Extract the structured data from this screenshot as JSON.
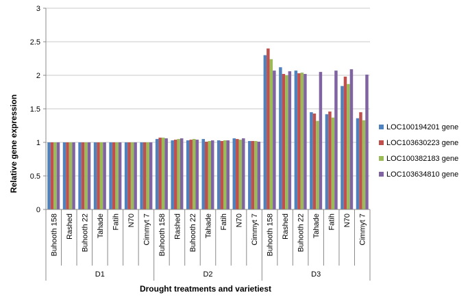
{
  "chart_data": {
    "type": "bar",
    "title": "",
    "xlabel": "Drought treatments and varietiest",
    "ylabel": "Relative gene expression",
    "ylim": [
      0,
      3
    ],
    "yticks": [
      0,
      0.5,
      1,
      1.5,
      2,
      2.5,
      3
    ],
    "ytick_labels": [
      "0",
      "0.5",
      "1",
      "1.5",
      "2",
      "2.5",
      "3"
    ],
    "grid": true,
    "legend_position": "right",
    "groups": [
      "D1",
      "D2",
      "D3"
    ],
    "varieties": [
      "Buhooth 158",
      "Rashed",
      "Buhooth 22",
      "Tahade",
      "Fatih",
      "N70",
      "Cimmyt 7"
    ],
    "categories": [
      "Buhooth 158",
      "Rashed",
      "Buhooth 22",
      "Tahade",
      "Fatih",
      "N70",
      "Cimmyt 7",
      "Buhooth 158",
      "Rashed",
      "Buhooth 22",
      "Tahade",
      "Fatih",
      "N70",
      "Cimmyt 7",
      "Buhooth 158",
      "Rashed",
      "Buhooth 22",
      "Tahade",
      "Fatih",
      "N70",
      "Cimmyt 7"
    ],
    "series": [
      {
        "name": "LOC100194201 gene",
        "color": "#4F81BD",
        "values": [
          1,
          1,
          1,
          1,
          1,
          1,
          1,
          1.05,
          1.03,
          1.03,
          1.05,
          1.03,
          1.06,
          1.02,
          2.3,
          2.12,
          2.07,
          1.45,
          1.42,
          1.84,
          1.36
        ]
      },
      {
        "name": "LOC103630223 gene",
        "color": "#C0504D",
        "values": [
          1,
          1,
          1,
          1,
          1,
          1,
          1,
          1.07,
          1.04,
          1.04,
          1.01,
          1.02,
          1.05,
          1.02,
          2.4,
          2.02,
          2.03,
          1.43,
          1.46,
          1.98,
          1.45
        ]
      },
      {
        "name": "LOC100382183 gene",
        "color": "#9BBB59",
        "values": [
          1,
          1,
          1,
          1,
          1,
          1,
          1,
          1.07,
          1.05,
          1.05,
          1.02,
          1.03,
          1.04,
          1.02,
          2.24,
          2.0,
          2.04,
          1.32,
          1.37,
          1.87,
          1.33
        ]
      },
      {
        "name": "LOC103634810 gene",
        "color": "#8064A2",
        "values": [
          1,
          1,
          1,
          1,
          1,
          1,
          1,
          1.06,
          1.06,
          1.04,
          1.03,
          1.03,
          1.06,
          1.01,
          2.07,
          2.06,
          2.02,
          2.05,
          2.07,
          2.09,
          2.01
        ]
      }
    ]
  }
}
